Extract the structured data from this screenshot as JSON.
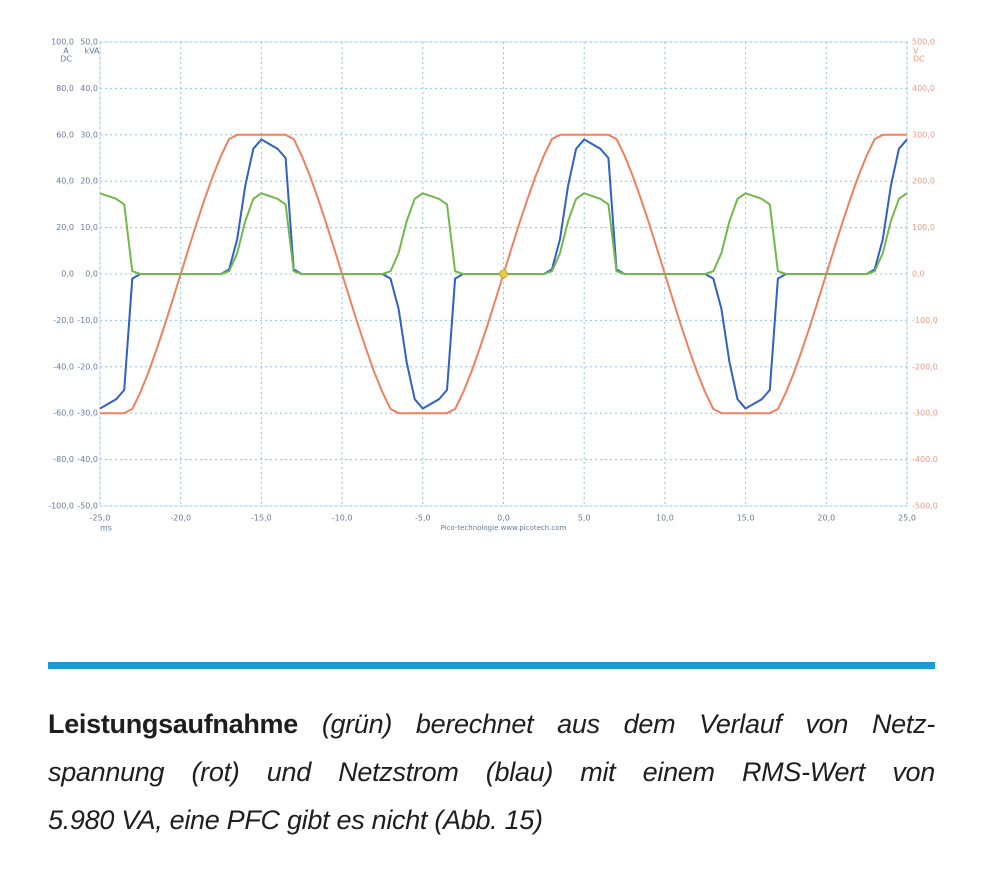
{
  "chart_data": {
    "type": "line",
    "ylabel": [
      "A",
      "DC"
    ],
    "y3label": [
      "kVA"
    ],
    "y2label": [
      "V",
      "DC"
    ],
    "xlabel": "ms",
    "watermark": "Pico-technologie www.picotech.com",
    "grid": true,
    "xlim": [
      -25,
      25
    ],
    "xticks": [
      {
        "value": -25,
        "label": "-25,0"
      },
      {
        "value": -20,
        "label": "-20,0"
      },
      {
        "value": -15,
        "label": "-15,0"
      },
      {
        "value": -10,
        "label": "-10,0"
      },
      {
        "value": -5,
        "label": "-5,0"
      },
      {
        "value": 0,
        "label": "0,0"
      },
      {
        "value": 5,
        "label": "5,0"
      },
      {
        "value": 10,
        "label": "10,0"
      },
      {
        "value": 15,
        "label": "15,0"
      },
      {
        "value": 20,
        "label": "20,0"
      },
      {
        "value": 25,
        "label": "25,0"
      }
    ],
    "ylim": [
      -100,
      100
    ],
    "yticks": [
      {
        "value": 100,
        "label": "100,0"
      },
      {
        "value": 80,
        "label": "80,0"
      },
      {
        "value": 60,
        "label": "60,0"
      },
      {
        "value": 40,
        "label": "40,0"
      },
      {
        "value": 20,
        "label": "20,0"
      },
      {
        "value": 0,
        "label": "0,0"
      },
      {
        "value": -20,
        "label": "-20,0"
      },
      {
        "value": -40,
        "label": "-40,0"
      },
      {
        "value": -60,
        "label": "-60,0"
      },
      {
        "value": -80,
        "label": "-80,0"
      },
      {
        "value": -100,
        "label": "-100,0"
      }
    ],
    "y3lim": [
      -50,
      50
    ],
    "y3ticks": [
      {
        "value": 50,
        "label": "50,0"
      },
      {
        "value": 40,
        "label": "40,0"
      },
      {
        "value": 30,
        "label": "30,0"
      },
      {
        "value": 20,
        "label": "20,0"
      },
      {
        "value": 10,
        "label": "10,0"
      },
      {
        "value": 0,
        "label": "0,0"
      },
      {
        "value": -10,
        "label": "-10,0"
      },
      {
        "value": -20,
        "label": "-20,0"
      },
      {
        "value": -30,
        "label": "-30,0"
      },
      {
        "value": -40,
        "label": "-40,0"
      },
      {
        "value": -50,
        "label": "-50,0"
      }
    ],
    "y2lim": [
      -500,
      500
    ],
    "y2ticks": [
      {
        "value": 500,
        "label": "500,0"
      },
      {
        "value": 400,
        "label": "400,0"
      },
      {
        "value": 300,
        "label": "300,0"
      },
      {
        "value": 200,
        "label": "200,0"
      },
      {
        "value": 100,
        "label": "100,0"
      },
      {
        "value": 0,
        "label": "0,0"
      },
      {
        "value": -100,
        "label": "-100,0"
      },
      {
        "value": -200,
        "label": "-200,0"
      },
      {
        "value": -300,
        "label": "-300,0"
      },
      {
        "value": -400,
        "label": "-400,0"
      },
      {
        "value": -500,
        "label": "-500,0"
      }
    ],
    "x": [
      -25,
      -24.5,
      -24,
      -23.5,
      -23,
      -22.5,
      -22,
      -21.5,
      -21,
      -20.5,
      -20,
      -19.5,
      -19,
      -18.5,
      -18,
      -17.5,
      -17,
      -16.5,
      -16,
      -15.5,
      -15,
      -14.5,
      -14,
      -13.5,
      -13,
      -12.5,
      -12,
      -11.5,
      -11,
      -10.5,
      -10,
      -9.5,
      -9,
      -8.5,
      -8,
      -7.5,
      -7,
      -6.5,
      -6,
      -5.5,
      -5,
      -4.5,
      -4,
      -3.5,
      -3,
      -2.5,
      -2,
      -1.5,
      -1,
      -0.5,
      0,
      0.5,
      1,
      1.5,
      2,
      2.5,
      3,
      3.5,
      4,
      4.5,
      5,
      5.5,
      6,
      6.5,
      7,
      7.5,
      8,
      8.5,
      9,
      9.5,
      10,
      10.5,
      11,
      11.5,
      12,
      12.5,
      13,
      13.5,
      14,
      14.5,
      15,
      15.5,
      16,
      16.5,
      17,
      17.5,
      18,
      18.5,
      19,
      19.5,
      20,
      20.5,
      21,
      21.5,
      22,
      22.5,
      23,
      23.5,
      24,
      24.5,
      25
    ],
    "series": [
      {
        "color": "#f08060",
        "axis": "y2",
        "values": [
          -300,
          -300,
          -300,
          -300,
          -291,
          -255,
          -212,
          -163,
          -111,
          -56,
          0,
          56,
          111,
          163,
          212,
          255,
          291,
          300,
          300,
          300,
          300,
          300,
          300,
          300,
          291,
          255,
          212,
          163,
          111,
          56,
          0,
          -56,
          -111,
          -163,
          -212,
          -255,
          -291,
          -300,
          -300,
          -300,
          -300,
          -300,
          -300,
          -300,
          -291,
          -255,
          -212,
          -163,
          -111,
          -56,
          0,
          56,
          111,
          163,
          212,
          255,
          291,
          300,
          300,
          300,
          300,
          300,
          300,
          300,
          291,
          255,
          212,
          163,
          111,
          56,
          0,
          -56,
          -111,
          -163,
          -212,
          -255,
          -291,
          -300,
          -300,
          -300,
          -300,
          -300,
          -300,
          -300,
          -291,
          -255,
          -212,
          -163,
          -111,
          -56,
          0,
          56,
          111,
          163,
          212,
          255,
          291,
          300,
          300,
          300,
          300
        ]
      },
      {
        "color": "#2f5fc8",
        "axis": "y",
        "values": [
          -58,
          -56,
          -54,
          -50,
          -2,
          0,
          0,
          0,
          0,
          0,
          0,
          0,
          0,
          0,
          0,
          0,
          2,
          15,
          38,
          54,
          58,
          56,
          54,
          50,
          2,
          0,
          0,
          0,
          0,
          0,
          0,
          0,
          0,
          0,
          0,
          0,
          -2,
          -15,
          -38,
          -54,
          -58,
          -56,
          -54,
          -50,
          -2,
          0,
          0,
          0,
          0,
          0,
          0,
          0,
          0,
          0,
          0,
          0,
          2,
          15,
          38,
          54,
          58,
          56,
          54,
          50,
          2,
          0,
          0,
          0,
          0,
          0,
          0,
          0,
          0,
          0,
          0,
          0,
          -2,
          -15,
          -38,
          -54,
          -58,
          -56,
          -54,
          -50,
          -2,
          0,
          0,
          0,
          0,
          0,
          0,
          0,
          0,
          0,
          0,
          0,
          2,
          15,
          38,
          54,
          58
        ]
      },
      {
        "color": "#72b84a",
        "axis": "y3",
        "values": [
          17.4,
          16.8,
          16.2,
          15,
          0.6,
          0,
          0,
          0,
          0,
          0,
          0,
          0,
          0,
          0,
          0,
          0,
          0.6,
          4.5,
          11.4,
          16.2,
          17.4,
          16.8,
          16.2,
          15,
          0.6,
          0,
          0,
          0,
          0,
          0,
          0,
          0,
          0,
          0,
          0,
          0,
          0.6,
          4.5,
          11.4,
          16.2,
          17.4,
          16.8,
          16.2,
          15,
          0.6,
          0,
          0,
          0,
          0,
          0,
          0,
          0,
          0,
          0,
          0,
          0,
          0.6,
          4.5,
          11.4,
          16.2,
          17.4,
          16.8,
          16.2,
          15,
          0.6,
          0,
          0,
          0,
          0,
          0,
          0,
          0,
          0,
          0,
          0,
          0,
          0.6,
          4.5,
          11.4,
          16.2,
          17.4,
          16.8,
          16.2,
          15,
          0.6,
          0,
          0,
          0,
          0,
          0,
          0,
          0,
          0,
          0,
          0,
          0,
          0.6,
          4.5,
          11.4,
          16.2,
          17.4
        ]
      }
    ],
    "trigger_point": [
      0,
      0
    ]
  },
  "caption": {
    "bold": "Leistungsaufnahme",
    "lines": [
      "(grün) berechnet aus dem Verlauf von Netz-",
      "spannung (rot) und Netzstrom (blau) mit einem RMS-Wert von",
      "5.980 VA, eine PFC gibt es nicht (Abb. 15)"
    ]
  }
}
